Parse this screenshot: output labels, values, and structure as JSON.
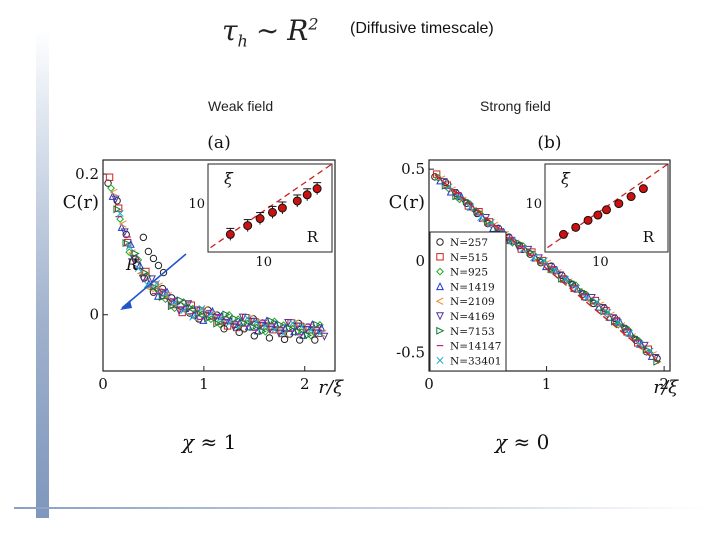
{
  "header": {
    "formula_tau": "τ",
    "formula_sub": "h",
    "formula_op": "∼",
    "formula_r": "R",
    "formula_exp": "2",
    "note": "(Diffusive timescale)"
  },
  "panels": [
    {
      "title": "Weak field",
      "chi_symbol": "χ",
      "chi_rel": "≈ 1"
    },
    {
      "title": "Strong field",
      "chi_symbol": "χ",
      "chi_rel": "≈ 0"
    }
  ],
  "colors": {
    "series": [
      "#222222",
      "#cc2222",
      "#22aa22",
      "#2233cc",
      "#ee8833",
      "#553399",
      "#117733",
      "#bb2299",
      "#22aacc"
    ],
    "fit": "#cc2222",
    "inset_points": "#cc1111",
    "arrow": "#2255cc"
  },
  "chart_data": [
    {
      "type": "scatter",
      "panel_label": "(a)",
      "title": "Weak field",
      "xlabel": "r/ξ",
      "ylabel": "C(r)",
      "xlim": [
        0,
        2.3
      ],
      "ylim": [
        -0.08,
        0.22
      ],
      "xticks": [
        "0",
        "1",
        "2"
      ],
      "yticks": [
        "0",
        "0.2"
      ],
      "annotation": "R",
      "legend": [],
      "series_curve": {
        "x": [
          0.05,
          0.1,
          0.15,
          0.2,
          0.25,
          0.3,
          0.35,
          0.4,
          0.5,
          0.6,
          0.7,
          0.8,
          0.9,
          1.0,
          1.2,
          1.4,
          1.6,
          1.8,
          2.0,
          2.2
        ],
        "y": [
          0.195,
          0.17,
          0.15,
          0.125,
          0.1,
          0.085,
          0.07,
          0.058,
          0.04,
          0.028,
          0.018,
          0.01,
          0.004,
          0.0,
          -0.007,
          -0.012,
          -0.016,
          -0.019,
          -0.021,
          -0.023
        ]
      },
      "scattered_points": {
        "x": [
          0.4,
          0.45,
          0.5,
          0.55,
          0.6,
          1.2,
          1.35,
          1.5,
          1.65,
          1.8,
          1.95,
          2.1
        ],
        "y": [
          0.11,
          0.09,
          0.08,
          0.07,
          0.06,
          -0.02,
          -0.025,
          -0.03,
          -0.033,
          -0.035,
          -0.036,
          -0.036
        ]
      },
      "inset": {
        "xlabel": "R",
        "ylabel": "ξ",
        "xtick": "10",
        "ytick": "10",
        "points": [
          {
            "x": 0.18,
            "y": 0.2
          },
          {
            "x": 0.32,
            "y": 0.3
          },
          {
            "x": 0.42,
            "y": 0.38
          },
          {
            "x": 0.52,
            "y": 0.45
          },
          {
            "x": 0.6,
            "y": 0.5
          },
          {
            "x": 0.72,
            "y": 0.58
          },
          {
            "x": 0.8,
            "y": 0.65
          },
          {
            "x": 0.88,
            "y": 0.72
          }
        ]
      }
    },
    {
      "type": "scatter",
      "panel_label": "(b)",
      "title": "Strong field",
      "xlabel": "r/ξ",
      "ylabel": "C(r)",
      "xlim": [
        0,
        2.05
      ],
      "ylim": [
        -0.6,
        0.55
      ],
      "xticks": [
        "0",
        "1",
        "2"
      ],
      "yticks": [
        "0.5",
        "0",
        "-0.5"
      ],
      "legend": [
        "N=257",
        "N=515",
        "N=925",
        "N=1419",
        "N=2109",
        "N=4169",
        "N=7153",
        "N=14147",
        "N=33401"
      ],
      "series_curve": {
        "x": [
          0.05,
          0.2,
          0.4,
          0.6,
          0.8,
          1.0,
          1.2,
          1.4,
          1.6,
          1.8,
          1.95
        ],
        "y": [
          0.47,
          0.38,
          0.27,
          0.16,
          0.07,
          -0.02,
          -0.12,
          -0.22,
          -0.33,
          -0.45,
          -0.55
        ]
      },
      "inset": {
        "xlabel": "R",
        "ylabel": "ξ",
        "xtick": "10",
        "ytick": "10",
        "points": [
          {
            "x": 0.15,
            "y": 0.2
          },
          {
            "x": 0.25,
            "y": 0.28
          },
          {
            "x": 0.35,
            "y": 0.36
          },
          {
            "x": 0.43,
            "y": 0.42
          },
          {
            "x": 0.5,
            "y": 0.48
          },
          {
            "x": 0.6,
            "y": 0.55
          },
          {
            "x": 0.7,
            "y": 0.63
          },
          {
            "x": 0.8,
            "y": 0.72
          }
        ]
      }
    }
  ]
}
